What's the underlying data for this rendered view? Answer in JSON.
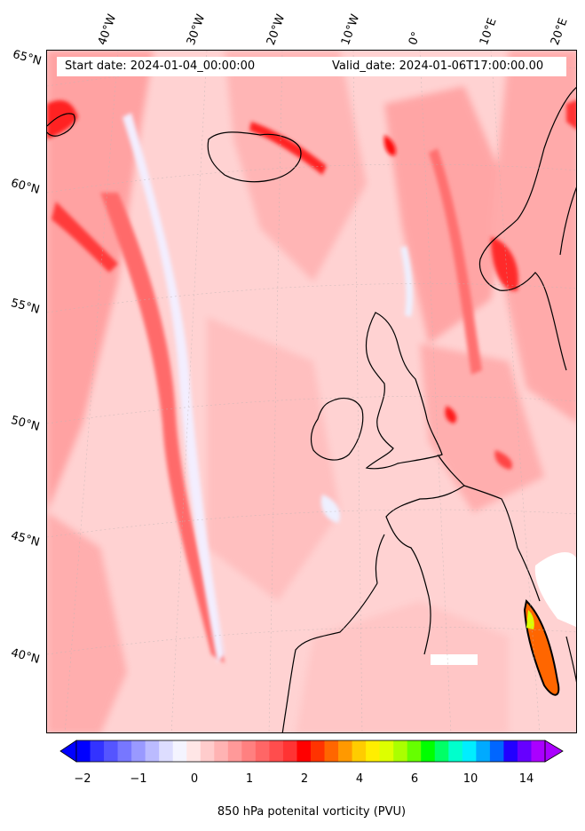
{
  "header": {
    "start_date": "Start date: 2024-01-04_00:00:00",
    "valid_date": "Valid_date: 2024-01-06T17:00:00.00"
  },
  "axes": {
    "longitude_labels": [
      "40°W",
      "30°W",
      "20°W",
      "10°W",
      "0°",
      "10°E",
      "20°E"
    ],
    "latitude_labels": [
      "65°N",
      "60°N",
      "55°N",
      "50°N",
      "45°N",
      "40°N"
    ]
  },
  "colorbar": {
    "label": "850 hPa potenital vorticity (PVU)",
    "ticks": [
      "−2",
      "−1",
      "0",
      "1",
      "2",
      "4",
      "6",
      "10",
      "14"
    ],
    "colors": [
      "#0000ff",
      "#3333ff",
      "#5555ff",
      "#7777ff",
      "#9999ff",
      "#bbbbff",
      "#ddddff",
      "#f4f4ff",
      "#ffe6e6",
      "#ffcccc",
      "#ffb3b3",
      "#ff9999",
      "#ff8080",
      "#ff6666",
      "#ff4d4d",
      "#ff3333",
      "#ff0000",
      "#ff3300",
      "#ff6600",
      "#ff9900",
      "#ffcc00",
      "#ffee00",
      "#ddff00",
      "#aaff00",
      "#66ff00",
      "#00ff00",
      "#00ff66",
      "#00ffcc",
      "#00eeff",
      "#00aaff",
      "#0066ff",
      "#2200ff",
      "#6600ff",
      "#aa00ff"
    ]
  },
  "colors": {
    "background_pv": "#ffd6d6",
    "high_pv": "#ff5555",
    "low_pv": "#eef0ff",
    "coastline": "#000000"
  }
}
